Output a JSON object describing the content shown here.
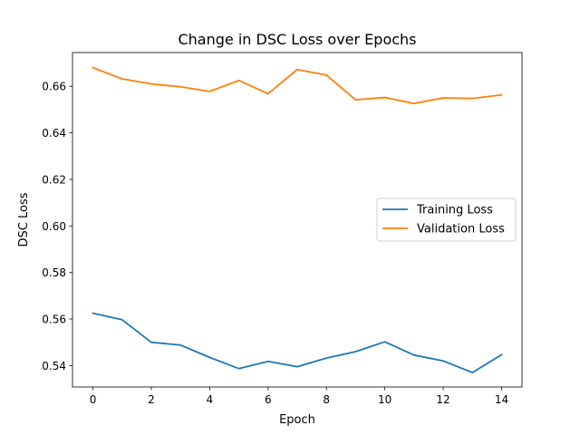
{
  "chart_data": {
    "type": "line",
    "title": "Change in DSC Loss over Epochs",
    "xlabel": "Epoch",
    "ylabel": "DSC Loss",
    "xlim": [
      -0.7,
      14.7
    ],
    "ylim": [
      0.5308,
      0.6745
    ],
    "x_ticks": [
      0,
      2,
      4,
      6,
      8,
      10,
      12,
      14
    ],
    "y_ticks": [
      0.54,
      0.56,
      0.58,
      0.6,
      0.62,
      0.64,
      0.66
    ],
    "grid": false,
    "legend_position": "center-right",
    "x": [
      0,
      1,
      2,
      3,
      4,
      5,
      6,
      7,
      8,
      9,
      10,
      11,
      12,
      13,
      14
    ],
    "series": [
      {
        "name": "Training Loss",
        "color": "#1f77b4",
        "values": [
          0.5625,
          0.5597,
          0.55,
          0.5488,
          0.5435,
          0.5387,
          0.5418,
          0.5395,
          0.5432,
          0.546,
          0.5502,
          0.5445,
          0.542,
          0.537,
          0.5447
        ]
      },
      {
        "name": "Validation Loss",
        "color": "#ff7f0e",
        "values": [
          0.668,
          0.6632,
          0.661,
          0.6598,
          0.6578,
          0.6625,
          0.6568,
          0.6672,
          0.6648,
          0.6542,
          0.6552,
          0.6526,
          0.655,
          0.6548,
          0.6563
        ]
      }
    ]
  }
}
